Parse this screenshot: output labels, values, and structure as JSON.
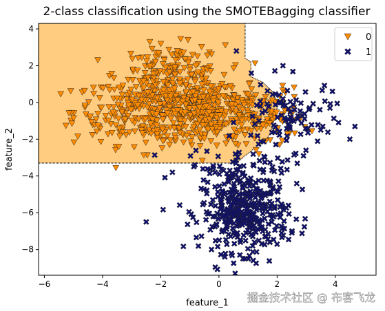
{
  "chart_data": {
    "type": "scatter",
    "title": "2-class classification using the SMOTEBagging classifier",
    "xlabel": "feature_1",
    "ylabel": "feature_2",
    "xlim": [
      -6.2,
      5.4
    ],
    "ylim": [
      -9.4,
      4.3
    ],
    "xticks": [
      -6,
      -4,
      -2,
      0,
      2,
      4
    ],
    "yticks": [
      -8,
      -6,
      -4,
      -2,
      0,
      2,
      4
    ],
    "grid": false,
    "legend_position": "top-right",
    "decision_region": {
      "class": "0",
      "color": "#ffcc80",
      "boundary": [
        [
          -6.2,
          -3.3
        ],
        [
          0.6,
          -3.3
        ],
        [
          0.9,
          -2.9
        ],
        [
          1.3,
          -2.4
        ],
        [
          1.6,
          -2.1
        ],
        [
          1.8,
          -1.6
        ],
        [
          1.9,
          -0.9
        ],
        [
          2.0,
          -0.3
        ],
        [
          1.9,
          0.5
        ],
        [
          1.5,
          1.1
        ],
        [
          1.1,
          1.4
        ],
        [
          1.1,
          2.2
        ],
        [
          0.9,
          2.4
        ],
        [
          0.9,
          4.3
        ]
      ]
    },
    "series": [
      {
        "name": "0",
        "marker": "triangle-down",
        "color": "#ff8c00",
        "count": 900,
        "clusters": [
          {
            "cx": -2.0,
            "cy": -0.5,
            "sx": 1.5,
            "sy": 0.9,
            "w": 0.45
          },
          {
            "cx": -1.6,
            "cy": 1.5,
            "sx": 0.9,
            "sy": 0.8,
            "w": 0.2
          },
          {
            "cx": -0.4,
            "cy": -0.6,
            "sx": 0.9,
            "sy": 0.9,
            "w": 0.25
          },
          {
            "cx": 1.6,
            "cy": -0.8,
            "sx": 0.7,
            "sy": 0.8,
            "w": 0.1
          }
        ]
      },
      {
        "name": "1",
        "marker": "x-filled",
        "color": "#10106e",
        "count": 550,
        "clusters": [
          {
            "cx": 0.9,
            "cy": -6.0,
            "sx": 0.75,
            "sy": 1.05,
            "w": 0.72
          },
          {
            "cx": 2.3,
            "cy": -0.9,
            "sx": 0.8,
            "sy": 1.0,
            "w": 0.18
          },
          {
            "cx": 0.8,
            "cy": -3.5,
            "sx": 1.0,
            "sy": 0.5,
            "w": 0.1
          }
        ],
        "outliers": [
          [
            -2.5,
            -6.5
          ],
          [
            3.9,
            0.6
          ],
          [
            0.6,
            2.8
          ],
          [
            2.2,
            2.0
          ],
          [
            -1.6,
            -3.8
          ],
          [
            0.2,
            -8.4
          ],
          [
            4.5,
            -2.0
          ],
          [
            3.5,
            -1.5
          ]
        ]
      }
    ],
    "legend": [
      "0",
      "1"
    ]
  },
  "watermark": "掘金技术社区 @ 布客飞龙"
}
